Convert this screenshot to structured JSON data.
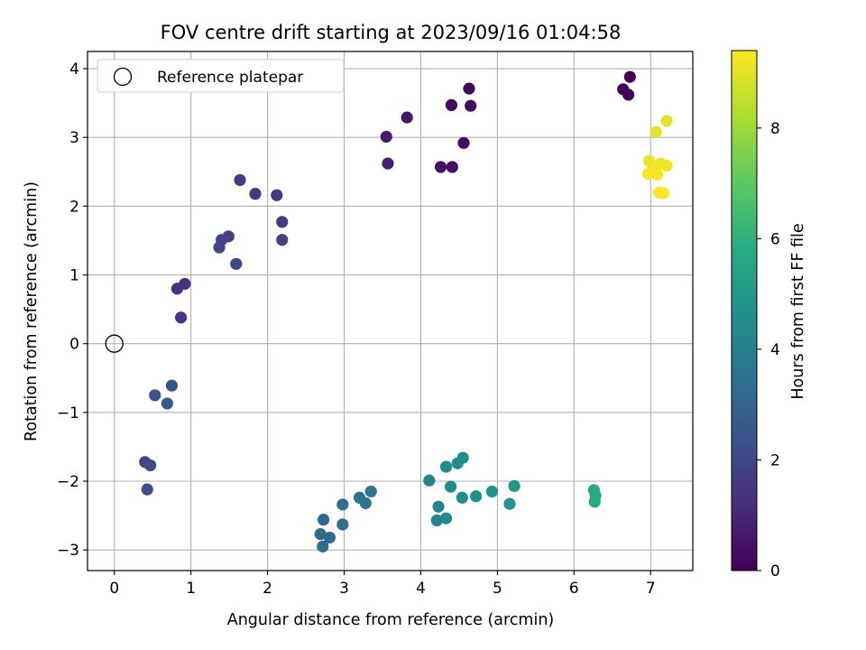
{
  "chart_data": {
    "type": "scatter",
    "title": "FOV centre drift starting at 2023/09/16 01:04:58",
    "xlabel": "Angular distance from reference (arcmin)",
    "ylabel": "Rotation from reference (arcmin)",
    "xlim": [
      -0.35,
      7.55
    ],
    "ylim": [
      -3.3,
      4.25
    ],
    "xticks": [
      0,
      1,
      2,
      3,
      4,
      5,
      6,
      7
    ],
    "yticks": [
      -3,
      -2,
      -1,
      0,
      1,
      2,
      3,
      4
    ],
    "xtick_labels": [
      "0",
      "1",
      "2",
      "3",
      "4",
      "5",
      "6",
      "7"
    ],
    "ytick_labels": [
      "−3",
      "−2",
      "−1",
      "0",
      "1",
      "2",
      "3",
      "4"
    ],
    "grid": true,
    "legend": {
      "placement": "top-left",
      "entries": [
        "Reference platepar"
      ]
    },
    "reference_point": {
      "x": 0,
      "y": 0,
      "marker": "hollow circle"
    },
    "colorbar": {
      "label": "Hours from first FF file",
      "colormap": "viridis",
      "range": [
        0,
        9.4
      ],
      "ticks": [
        0,
        2,
        4,
        6,
        8
      ],
      "tick_labels": [
        "0",
        "2",
        "4",
        "6",
        "8"
      ]
    },
    "points": [
      {
        "x": 6.73,
        "y": 3.88,
        "c": 0.0
      },
      {
        "x": 6.64,
        "y": 3.7,
        "c": 0.05
      },
      {
        "x": 6.71,
        "y": 3.62,
        "c": 0.1
      },
      {
        "x": 4.63,
        "y": 3.71,
        "c": 0.15
      },
      {
        "x": 4.4,
        "y": 3.47,
        "c": 0.2
      },
      {
        "x": 4.65,
        "y": 3.46,
        "c": 0.25
      },
      {
        "x": 4.56,
        "y": 2.92,
        "c": 0.3
      },
      {
        "x": 4.26,
        "y": 2.57,
        "c": 0.35
      },
      {
        "x": 4.41,
        "y": 2.57,
        "c": 0.4
      },
      {
        "x": 3.82,
        "y": 3.29,
        "c": 0.6
      },
      {
        "x": 3.55,
        "y": 3.01,
        "c": 0.7
      },
      {
        "x": 3.57,
        "y": 2.62,
        "c": 0.75
      },
      {
        "x": 0.82,
        "y": 0.8,
        "c": 1.3
      },
      {
        "x": 0.92,
        "y": 0.87,
        "c": 1.35
      },
      {
        "x": 0.87,
        "y": 0.38,
        "c": 1.4
      },
      {
        "x": 2.12,
        "y": 2.16,
        "c": 1.6
      },
      {
        "x": 1.84,
        "y": 2.18,
        "c": 1.65
      },
      {
        "x": 1.64,
        "y": 2.38,
        "c": 1.7
      },
      {
        "x": 2.19,
        "y": 1.77,
        "c": 1.75
      },
      {
        "x": 2.19,
        "y": 1.51,
        "c": 1.8
      },
      {
        "x": 1.49,
        "y": 1.56,
        "c": 1.85
      },
      {
        "x": 1.4,
        "y": 1.51,
        "c": 1.9
      },
      {
        "x": 1.37,
        "y": 1.4,
        "c": 1.95
      },
      {
        "x": 1.59,
        "y": 1.16,
        "c": 2.0
      },
      {
        "x": 0.4,
        "y": -1.72,
        "c": 2.1
      },
      {
        "x": 0.47,
        "y": -1.77,
        "c": 2.15
      },
      {
        "x": 0.43,
        "y": -2.12,
        "c": 2.2
      },
      {
        "x": 0.53,
        "y": -0.75,
        "c": 2.4
      },
      {
        "x": 0.75,
        "y": -0.61,
        "c": 2.5
      },
      {
        "x": 0.69,
        "y": -0.87,
        "c": 2.55
      },
      {
        "x": 2.73,
        "y": -2.56,
        "c": 3.2
      },
      {
        "x": 2.69,
        "y": -2.77,
        "c": 3.25
      },
      {
        "x": 2.81,
        "y": -2.82,
        "c": 3.3
      },
      {
        "x": 2.72,
        "y": -2.95,
        "c": 3.35
      },
      {
        "x": 2.98,
        "y": -2.34,
        "c": 3.4
      },
      {
        "x": 2.98,
        "y": -2.63,
        "c": 3.45
      },
      {
        "x": 3.2,
        "y": -2.24,
        "c": 3.6
      },
      {
        "x": 3.28,
        "y": -2.32,
        "c": 3.65
      },
      {
        "x": 3.35,
        "y": -2.15,
        "c": 3.7
      },
      {
        "x": 4.11,
        "y": -1.99,
        "c": 4.2
      },
      {
        "x": 4.23,
        "y": -2.37,
        "c": 4.25
      },
      {
        "x": 4.21,
        "y": -2.57,
        "c": 4.3
      },
      {
        "x": 4.33,
        "y": -2.54,
        "c": 4.35
      },
      {
        "x": 4.33,
        "y": -1.79,
        "c": 4.4
      },
      {
        "x": 4.39,
        "y": -2.08,
        "c": 4.45
      },
      {
        "x": 4.48,
        "y": -1.74,
        "c": 4.5
      },
      {
        "x": 4.55,
        "y": -1.66,
        "c": 4.55
      },
      {
        "x": 4.54,
        "y": -2.24,
        "c": 4.6
      },
      {
        "x": 4.72,
        "y": -2.22,
        "c": 4.65
      },
      {
        "x": 4.93,
        "y": -2.15,
        "c": 4.75
      },
      {
        "x": 5.16,
        "y": -2.33,
        "c": 4.85
      },
      {
        "x": 5.22,
        "y": -2.07,
        "c": 4.9
      },
      {
        "x": 6.26,
        "y": -2.13,
        "c": 5.7
      },
      {
        "x": 6.28,
        "y": -2.21,
        "c": 5.75
      },
      {
        "x": 6.27,
        "y": -2.3,
        "c": 5.8
      },
      {
        "x": 7.21,
        "y": 3.24,
        "c": 9.0
      },
      {
        "x": 7.07,
        "y": 3.08,
        "c": 9.05
      },
      {
        "x": 6.98,
        "y": 2.66,
        "c": 9.1
      },
      {
        "x": 7.13,
        "y": 2.62,
        "c": 9.15
      },
      {
        "x": 7.21,
        "y": 2.59,
        "c": 9.2
      },
      {
        "x": 7.03,
        "y": 2.55,
        "c": 9.22
      },
      {
        "x": 6.97,
        "y": 2.47,
        "c": 9.25
      },
      {
        "x": 7.09,
        "y": 2.46,
        "c": 9.28
      },
      {
        "x": 7.11,
        "y": 2.2,
        "c": 9.3
      },
      {
        "x": 7.17,
        "y": 2.19,
        "c": 9.35
      }
    ]
  }
}
